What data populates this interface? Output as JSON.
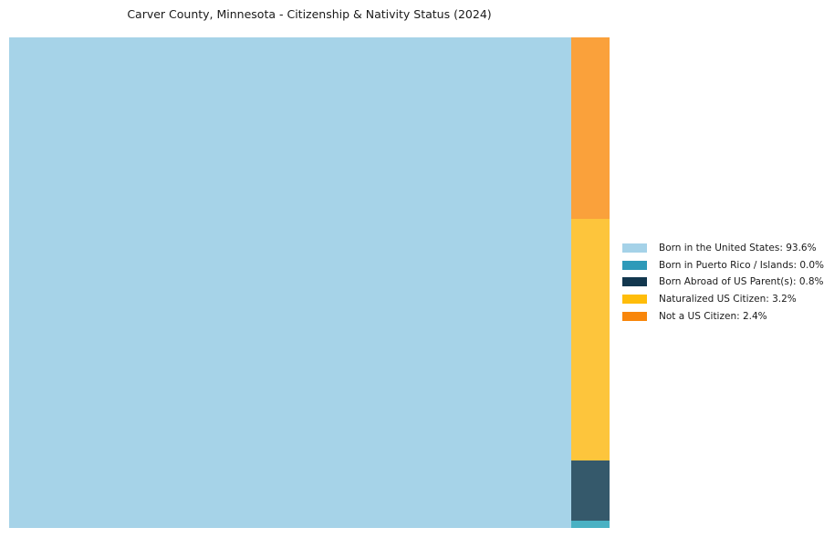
{
  "page": {
    "background_color": "#ffffff",
    "text_color": "#1a1a1a"
  },
  "chart_data": {
    "type": "treemap",
    "title": "Carver County, Minnesota - Citizenship & Nativity Status (2024)",
    "unit": "%",
    "slices": [
      {
        "label": "Born in the United States",
        "value": 93.6,
        "display": "Born in the United States: 93.6%",
        "block_color": "#a6d3e8",
        "legend_color": "#a5d2e8"
      },
      {
        "label": "Born in Puerto Rico / Islands",
        "value": 0.0,
        "display": "Born in Puerto Rico / Islands: 0.0%",
        "block_color": "#4ab1c3",
        "legend_color": "#2e9ab9"
      },
      {
        "label": "Born Abroad of US Parent(s)",
        "value": 0.8,
        "display": "Born Abroad of US Parent(s): 0.8%",
        "block_color": "#35596b",
        "legend_color": "#12374e"
      },
      {
        "label": "Naturalized US Citizen",
        "value": 3.2,
        "display": "Naturalized US Citizen: 3.2%",
        "block_color": "#fdc53c",
        "legend_color": "#ffbd0a"
      },
      {
        "label": "Not a US Citizen",
        "value": 2.4,
        "display": "Not a US Citizen: 2.4%",
        "block_color": "#faa13b",
        "legend_color": "#f8860b"
      }
    ],
    "layout_hints": {
      "legend_position": "right-center",
      "main_slice_index": 0,
      "minor_column_order_top_to_bottom": [
        4,
        3,
        2,
        1
      ],
      "min_minor_block_share": 0.015,
      "grid": false,
      "axes": false
    }
  }
}
